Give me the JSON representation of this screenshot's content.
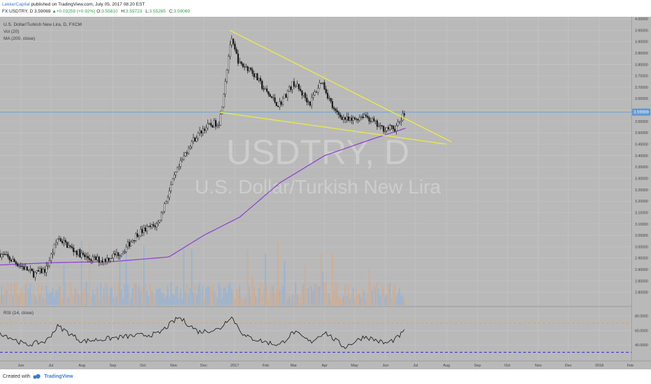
{
  "header": {
    "author": "LekkerCapital",
    "published": "published on TradingView.com, July 05, 2017 08:20 EST",
    "symbol": "FX:USDTRY, D",
    "last": "3.59069",
    "change": "+0.03259 (+0.92%)",
    "ohlc": [
      {
        "k": "O:",
        "v": "3.55810"
      },
      {
        "k": "H:",
        "v": "3.59723"
      },
      {
        "k": "L:",
        "v": "3.55285"
      },
      {
        "k": "C:",
        "v": "3.59069"
      }
    ]
  },
  "legend": {
    "line1": "U.S. Dollar/Turkish New Lira, D, FXCM",
    "line2": "Vol (20)",
    "line3": "MA (200, close)"
  },
  "watermark": {
    "ticker": "USDTRY, D",
    "name": "U.S. Dollar/Turkish New Lira"
  },
  "rsi_label": "RSI (14, close)",
  "last_price_tag": "3.59069",
  "footer": {
    "created": "Created with",
    "brand": "TradingView"
  },
  "colors": {
    "background": "#b9b9b9",
    "grid": "#c6c6c6",
    "candle": "#1c1c1c",
    "trendline": "#e8e84a",
    "ma": "#8b3fd0",
    "rsi": "#111111",
    "rsi_bands": "#e8a347",
    "rsi_low_band": "#3a3ad0",
    "price_line": "#6fa4d8",
    "volume_up": "#8fb0d8",
    "volume_down": "#d6a986"
  },
  "chart_data": {
    "type": "candlestick",
    "ylim": [
      2.75,
      4.0
    ],
    "price_ticks": [
      "4.00000",
      "3.95000",
      "3.90000",
      "3.85000",
      "3.80000",
      "3.75000",
      "3.70000",
      "3.65000",
      "3.60000",
      "3.55000",
      "3.50000",
      "3.45000",
      "3.40000",
      "3.35000",
      "3.30000",
      "3.25000",
      "3.20000",
      "3.15000",
      "3.10000",
      "3.05000",
      "3.00000",
      "2.95000",
      "2.90000",
      "2.85000",
      "2.80000"
    ],
    "rsi_ticks": [
      "80.0000",
      "60.0000",
      "40.0000"
    ],
    "rsi_levels": [
      70,
      30
    ],
    "x_labels": [
      "Jun",
      "Jul",
      "Aug",
      "Sep",
      "Oct",
      "Nov",
      "Dec",
      "2017",
      "Feb",
      "Mar",
      "Apr",
      "May",
      "Jun",
      "Jul",
      "Aug",
      "Sep",
      "Oct",
      "Nov",
      "Dec",
      "2018",
      "Feb",
      "Mar"
    ],
    "ma_label": "MA (200, close)",
    "price_keypoints": [
      {
        "date": "2016-05-25",
        "close": 2.97
      },
      {
        "date": "2016-06-10",
        "close": 2.93
      },
      {
        "date": "2016-06-28",
        "close": 2.88
      },
      {
        "date": "2016-07-10",
        "close": 2.9
      },
      {
        "date": "2016-07-22",
        "close": 3.04
      },
      {
        "date": "2016-08-05",
        "close": 2.99
      },
      {
        "date": "2016-08-20",
        "close": 2.95
      },
      {
        "date": "2016-09-05",
        "close": 2.94
      },
      {
        "date": "2016-09-25",
        "close": 2.98
      },
      {
        "date": "2016-10-10",
        "close": 3.06
      },
      {
        "date": "2016-10-30",
        "close": 3.1
      },
      {
        "date": "2016-11-15",
        "close": 3.3
      },
      {
        "date": "2016-12-01",
        "close": 3.45
      },
      {
        "date": "2016-12-15",
        "close": 3.52
      },
      {
        "date": "2016-12-31",
        "close": 3.55
      },
      {
        "date": "2017-01-11",
        "close": 3.91
      },
      {
        "date": "2017-01-20",
        "close": 3.8
      },
      {
        "date": "2017-01-31",
        "close": 3.78
      },
      {
        "date": "2017-02-15",
        "close": 3.68
      },
      {
        "date": "2017-02-28",
        "close": 3.62
      },
      {
        "date": "2017-03-15",
        "close": 3.72
      },
      {
        "date": "2017-03-31",
        "close": 3.63
      },
      {
        "date": "2017-04-12",
        "close": 3.73
      },
      {
        "date": "2017-04-25",
        "close": 3.59
      },
      {
        "date": "2017-05-10",
        "close": 3.55
      },
      {
        "date": "2017-05-25",
        "close": 3.58
      },
      {
        "date": "2017-06-10",
        "close": 3.52
      },
      {
        "date": "2017-06-25",
        "close": 3.52
      },
      {
        "date": "2017-07-05",
        "close": 3.59
      }
    ],
    "ma_keypoints": [
      {
        "date": "2016-05-25",
        "value": 2.92
      },
      {
        "date": "2016-07-15",
        "value": 2.93
      },
      {
        "date": "2016-09-15",
        "value": 2.935
      },
      {
        "date": "2016-11-10",
        "value": 2.955
      },
      {
        "date": "2016-12-15",
        "value": 3.05
      },
      {
        "date": "2017-01-20",
        "value": 3.13
      },
      {
        "date": "2017-03-01",
        "value": 3.28
      },
      {
        "date": "2017-04-15",
        "value": 3.4
      },
      {
        "date": "2017-05-31",
        "value": 3.47
      },
      {
        "date": "2017-07-05",
        "value": 3.52
      }
    ],
    "rsi_keypoints": [
      {
        "date": "2016-05-25",
        "value": 57
      },
      {
        "date": "2016-06-20",
        "value": 40
      },
      {
        "date": "2016-07-10",
        "value": 45
      },
      {
        "date": "2016-07-22",
        "value": 66
      },
      {
        "date": "2016-08-15",
        "value": 45
      },
      {
        "date": "2016-09-05",
        "value": 48
      },
      {
        "date": "2016-10-01",
        "value": 52
      },
      {
        "date": "2016-10-30",
        "value": 55
      },
      {
        "date": "2016-11-20",
        "value": 78
      },
      {
        "date": "2016-12-10",
        "value": 58
      },
      {
        "date": "2016-12-31",
        "value": 62
      },
      {
        "date": "2017-01-11",
        "value": 80
      },
      {
        "date": "2017-01-25",
        "value": 52
      },
      {
        "date": "2017-02-15",
        "value": 44
      },
      {
        "date": "2017-03-01",
        "value": 40
      },
      {
        "date": "2017-03-15",
        "value": 58
      },
      {
        "date": "2017-04-01",
        "value": 44
      },
      {
        "date": "2017-04-15",
        "value": 58
      },
      {
        "date": "2017-05-05",
        "value": 37
      },
      {
        "date": "2017-05-25",
        "value": 52
      },
      {
        "date": "2017-06-15",
        "value": 42
      },
      {
        "date": "2017-06-25",
        "value": 48
      },
      {
        "date": "2017-07-05",
        "value": 60
      }
    ],
    "trendlines": [
      {
        "name": "upper",
        "from": {
          "date": "2017-01-10",
          "price": 3.95
        },
        "to": {
          "date": "2017-08-20",
          "price": 3.46
        }
      },
      {
        "name": "lower",
        "from": {
          "date": "2016-12-31",
          "price": 3.59
        },
        "to": {
          "date": "2017-08-15",
          "price": 3.45
        }
      }
    ]
  }
}
